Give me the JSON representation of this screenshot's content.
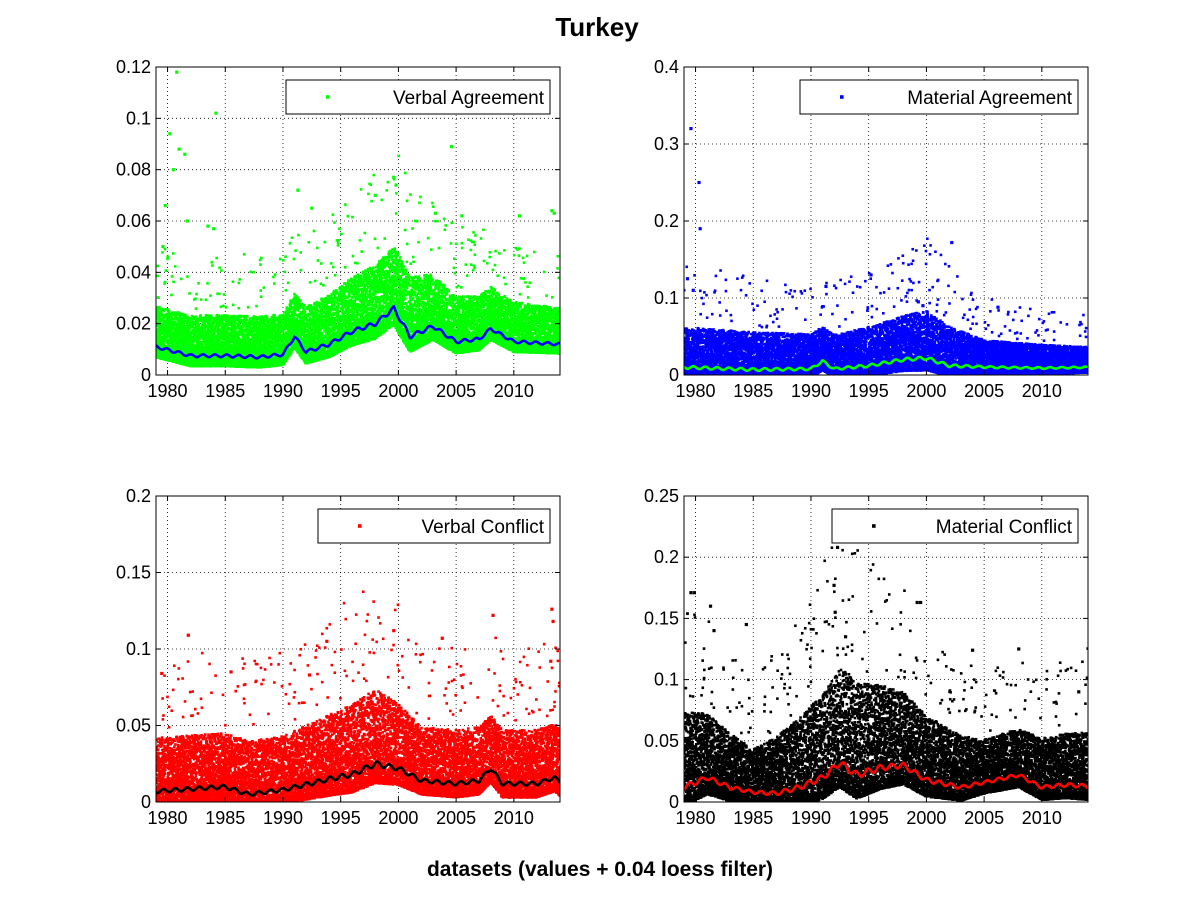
{
  "figure": {
    "title": "Turkey",
    "xlabel": "datasets (values + 0.04 loess filter)"
  },
  "chart_data": [
    {
      "type": "scatter",
      "legend": "Verbal Agreement",
      "legend_position": "top-right",
      "grid": true,
      "xlim": [
        1979,
        2014
      ],
      "ylim": [
        0,
        0.12
      ],
      "xticks": [
        "1980",
        "1985",
        "1990",
        "1995",
        "2000",
        "2005",
        "2010"
      ],
      "yticks": [
        "0",
        "0.02",
        "0.04",
        "0.06",
        "0.08",
        "0.1",
        "0.12"
      ],
      "marker_color": "#00ff00",
      "line_color": "#0000ff",
      "baseline": [
        [
          1979,
          0.011
        ],
        [
          1982,
          0.0075
        ],
        [
          1985,
          0.0075
        ],
        [
          1988,
          0.007
        ],
        [
          1990,
          0.008
        ],
        [
          1991,
          0.015
        ],
        [
          1992,
          0.009
        ],
        [
          1994,
          0.012
        ],
        [
          1996,
          0.017
        ],
        [
          1998,
          0.02
        ],
        [
          1999.6,
          0.026
        ],
        [
          2001,
          0.015
        ],
        [
          2003,
          0.019
        ],
        [
          2005,
          0.013
        ],
        [
          2007,
          0.014
        ],
        [
          2008,
          0.018
        ],
        [
          2010,
          0.013
        ],
        [
          2014,
          0.012
        ]
      ],
      "spread": [
        [
          1979,
          0.009
        ],
        [
          1990,
          0.009
        ],
        [
          1996,
          0.012
        ],
        [
          2000,
          0.014
        ],
        [
          2005,
          0.01
        ],
        [
          2014,
          0.008
        ]
      ],
      "density": 22,
      "outliers": [
        [
          1979.6,
          0.05
        ],
        [
          1979.8,
          0.066
        ],
        [
          1980.2,
          0.094
        ],
        [
          1980.5,
          0.08
        ],
        [
          1980.8,
          0.118
        ],
        [
          1981,
          0.088
        ],
        [
          1981.5,
          0.086
        ],
        [
          1981.7,
          0.06
        ],
        [
          1983.5,
          0.058
        ],
        [
          1984,
          0.057
        ],
        [
          1984.2,
          0.102
        ],
        [
          1991.3,
          0.072
        ],
        [
          1992.5,
          0.065
        ],
        [
          1998,
          0.07
        ],
        [
          1999.6,
          0.077
        ],
        [
          1999.8,
          0.074
        ],
        [
          2003.2,
          0.063
        ],
        [
          2004.6,
          0.089
        ],
        [
          2005.5,
          0.062
        ],
        [
          2010.5,
          0.062
        ],
        [
          2013.3,
          0.064
        ],
        [
          2013.5,
          0.063
        ]
      ],
      "series": [
        {
          "name": "Verbal Agreement",
          "kind": "points"
        },
        {
          "name": "",
          "kind": "loess"
        }
      ]
    },
    {
      "type": "scatter",
      "legend": "Material Agreement",
      "legend_position": "top-right",
      "grid": true,
      "xlim": [
        1979,
        2014
      ],
      "ylim": [
        0,
        0.4
      ],
      "xticks": [
        "1980",
        "1985",
        "1990",
        "1995",
        "2000",
        "2005",
        "2010"
      ],
      "yticks": [
        "0",
        "0.1",
        "0.2",
        "0.3",
        "0.4"
      ],
      "marker_color": "#0000ff",
      "line_color": "#00ff00",
      "baseline": [
        [
          1979,
          0.01
        ],
        [
          1985,
          0.007
        ],
        [
          1990,
          0.008
        ],
        [
          1991,
          0.018
        ],
        [
          1992,
          0.008
        ],
        [
          1995,
          0.012
        ],
        [
          1998,
          0.02
        ],
        [
          2000,
          0.022
        ],
        [
          2002,
          0.012
        ],
        [
          2006,
          0.01
        ],
        [
          2010,
          0.009
        ],
        [
          2014,
          0.01
        ]
      ],
      "spread": [
        [
          1979,
          0.03
        ],
        [
          1992,
          0.025
        ],
        [
          2000,
          0.035
        ],
        [
          2005,
          0.02
        ],
        [
          2014,
          0.015
        ]
      ],
      "density": 20,
      "outliers": [
        [
          1979.3,
          0.125
        ],
        [
          1979.6,
          0.32
        ],
        [
          1979.8,
          0.11
        ],
        [
          1980.3,
          0.25
        ],
        [
          1980.4,
          0.19
        ],
        [
          1991.3,
          0.115
        ],
        [
          1995.2,
          0.13
        ],
        [
          1999.3,
          0.095
        ],
        [
          1999.7,
          0.09
        ],
        [
          2002.2,
          0.172
        ],
        [
          2006.2,
          0.088
        ]
      ],
      "series": [
        {
          "name": "Material Agreement",
          "kind": "points"
        },
        {
          "name": "",
          "kind": "loess"
        }
      ]
    },
    {
      "type": "scatter",
      "legend": "Verbal Conflict",
      "legend_position": "top-right",
      "grid": true,
      "xlim": [
        1979,
        2014
      ],
      "ylim": [
        0,
        0.2
      ],
      "xticks": [
        "1980",
        "1985",
        "1990",
        "1995",
        "2000",
        "2005",
        "2010"
      ],
      "yticks": [
        "0",
        "0.05",
        "0.1",
        "0.15",
        "0.2"
      ],
      "marker_color": "#ff0000",
      "line_color": "#000000",
      "baseline": [
        [
          1979,
          0.007
        ],
        [
          1983,
          0.009
        ],
        [
          1985,
          0.01
        ],
        [
          1987,
          0.005
        ],
        [
          1990,
          0.008
        ],
        [
          1994,
          0.015
        ],
        [
          1996,
          0.018
        ],
        [
          1998,
          0.025
        ],
        [
          2000,
          0.022
        ],
        [
          2002,
          0.014
        ],
        [
          2005,
          0.012
        ],
        [
          2007,
          0.014
        ],
        [
          2008,
          0.022
        ],
        [
          2009,
          0.012
        ],
        [
          2012,
          0.012
        ],
        [
          2013.5,
          0.016
        ],
        [
          2014,
          0.013
        ]
      ],
      "spread": [
        [
          1979,
          0.02
        ],
        [
          1990,
          0.02
        ],
        [
          1998,
          0.028
        ],
        [
          2002,
          0.02
        ],
        [
          2014,
          0.02
        ]
      ],
      "density": 22,
      "outliers": [
        [
          1979.5,
          0.084
        ],
        [
          1981.8,
          0.109
        ],
        [
          1985.5,
          0.085
        ],
        [
          1992.3,
          0.083
        ],
        [
          1993.8,
          0.105
        ],
        [
          1999.6,
          0.112
        ],
        [
          2003.8,
          0.107
        ],
        [
          2008.2,
          0.122
        ],
        [
          2013.3,
          0.126
        ],
        [
          2013.4,
          0.118
        ],
        [
          2013.2,
          0.092
        ]
      ],
      "series": [
        {
          "name": "Verbal Conflict",
          "kind": "points"
        },
        {
          "name": "",
          "kind": "loess"
        }
      ]
    },
    {
      "type": "scatter",
      "legend": "Material Conflict",
      "legend_position": "top-right",
      "grid": true,
      "xlim": [
        1979,
        2014
      ],
      "ylim": [
        0,
        0.25
      ],
      "xticks": [
        "1980",
        "1985",
        "1990",
        "1995",
        "2000",
        "2005",
        "2010"
      ],
      "yticks": [
        "0",
        "0.05",
        "0.1",
        "0.15",
        "0.2",
        "0.25"
      ],
      "marker_color": "#000000",
      "line_color": "#ff0000",
      "baseline": [
        [
          1979,
          0.012
        ],
        [
          1981,
          0.02
        ],
        [
          1983,
          0.012
        ],
        [
          1985,
          0.008
        ],
        [
          1987,
          0.007
        ],
        [
          1989,
          0.012
        ],
        [
          1991,
          0.02
        ],
        [
          1992.5,
          0.032
        ],
        [
          1994,
          0.022
        ],
        [
          1996,
          0.028
        ],
        [
          1998,
          0.03
        ],
        [
          2000,
          0.018
        ],
        [
          2003,
          0.012
        ],
        [
          2006,
          0.018
        ],
        [
          2008,
          0.022
        ],
        [
          2010,
          0.012
        ],
        [
          2012,
          0.014
        ],
        [
          2014,
          0.013
        ]
      ],
      "spread": [
        [
          1979,
          0.035
        ],
        [
          1985,
          0.02
        ],
        [
          1993,
          0.045
        ],
        [
          2000,
          0.03
        ],
        [
          2005,
          0.02
        ],
        [
          2014,
          0.025
        ]
      ],
      "density": 22,
      "outliers": [
        [
          1979.6,
          0.171
        ],
        [
          1979.9,
          0.171
        ],
        [
          1981.3,
          0.16
        ],
        [
          1981.6,
          0.14
        ],
        [
          1984.4,
          0.145
        ],
        [
          1992.3,
          0.208
        ],
        [
          1992.0,
          0.177
        ],
        [
          1992.1,
          0.155
        ],
        [
          1993.0,
          0.135
        ],
        [
          1999.2,
          0.163
        ],
        [
          1999.5,
          0.163
        ],
        [
          2004.0,
          0.124
        ],
        [
          2008.0,
          0.125
        ],
        [
          2013.2,
          0.09
        ]
      ],
      "series": [
        {
          "name": "Material Conflict",
          "kind": "points"
        },
        {
          "name": "",
          "kind": "loess"
        }
      ]
    }
  ]
}
